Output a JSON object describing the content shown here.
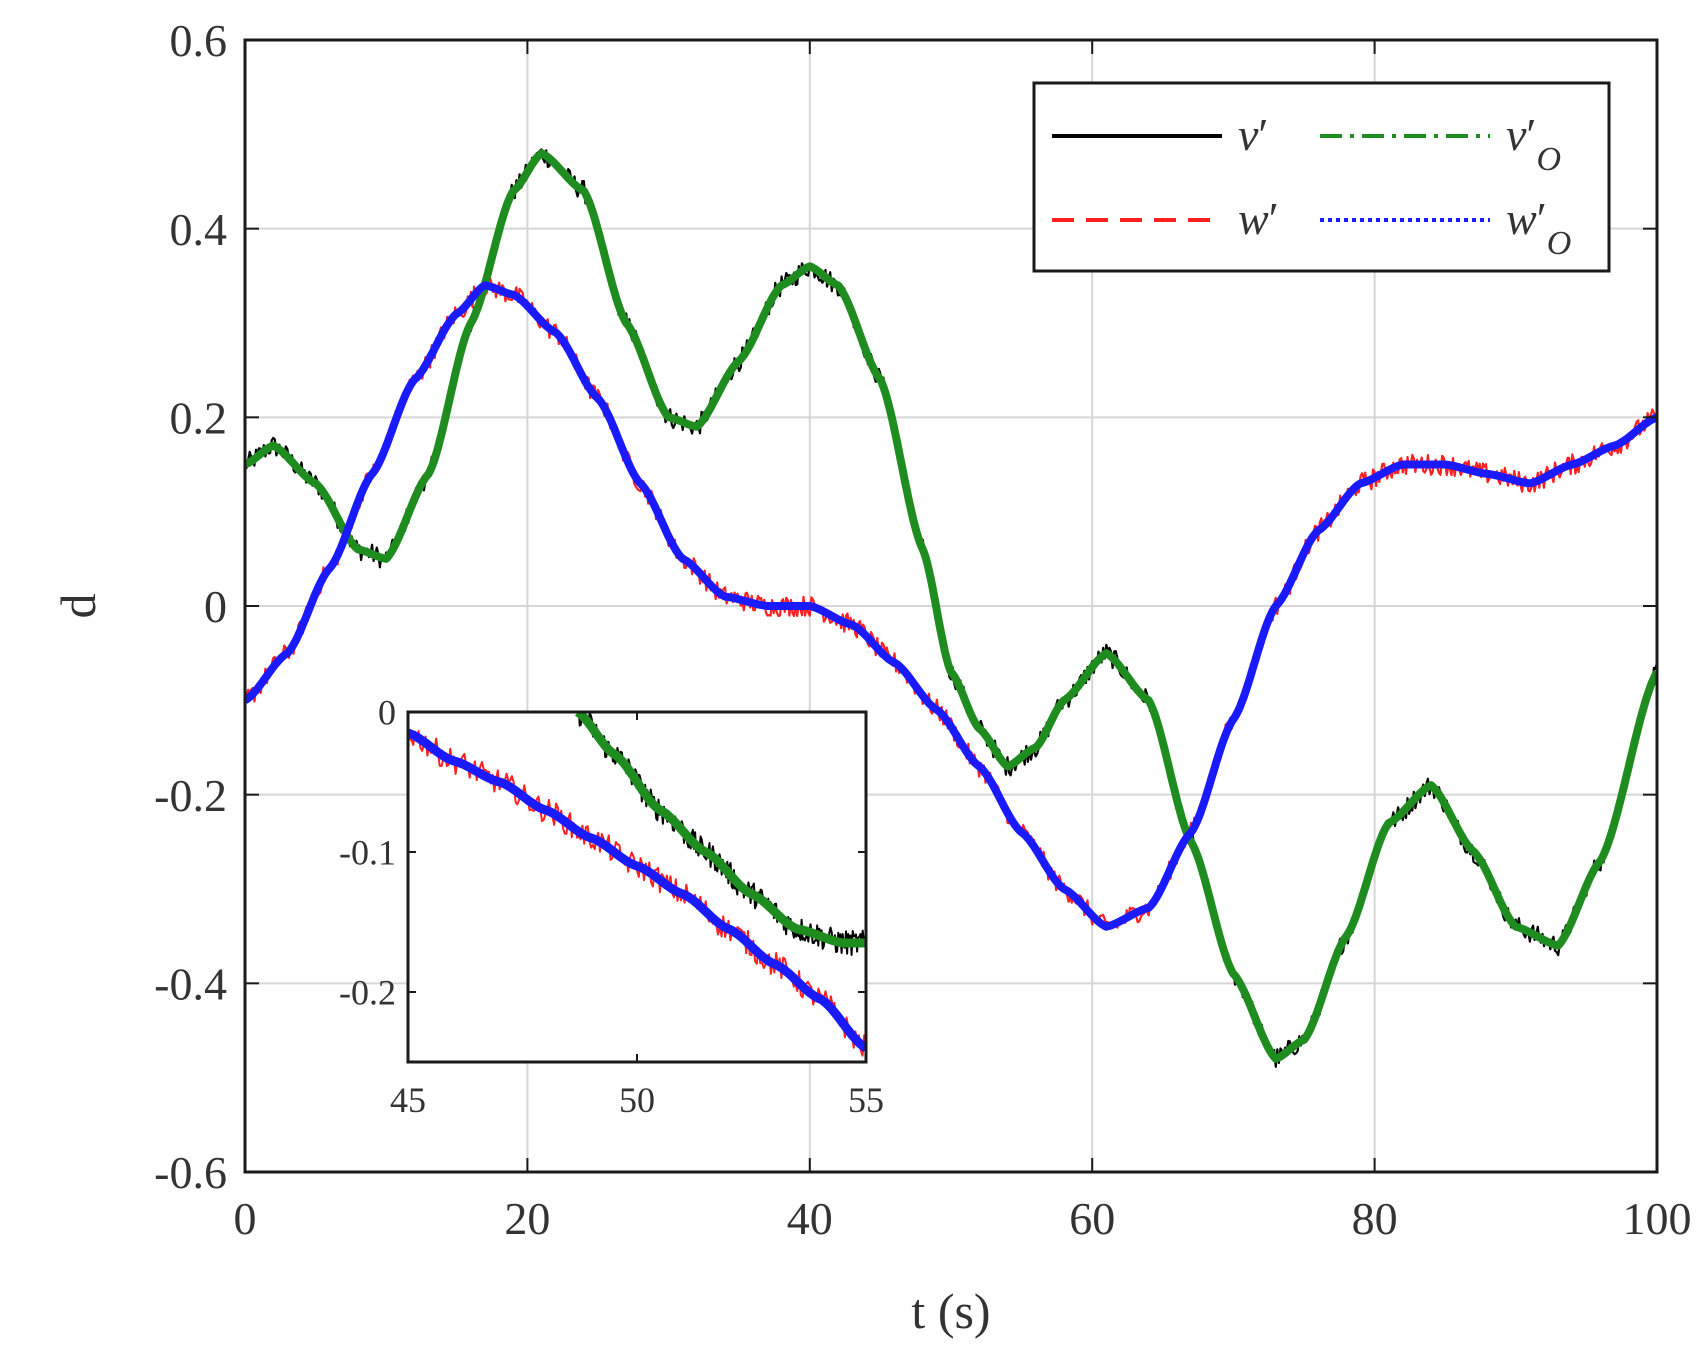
{
  "chart_data": [
    {
      "type": "line",
      "title": "",
      "xlabel": "t (s)",
      "ylabel": "d",
      "xlim": [
        0,
        100
      ],
      "ylim": [
        -0.6,
        0.6
      ],
      "xticks": [
        "0",
        "20",
        "40",
        "60",
        "80",
        "100"
      ],
      "yticks": [
        "0.6",
        "0.4",
        "0.2",
        "0",
        "-0.2",
        "-0.4",
        "-0.6"
      ],
      "grid": true,
      "legend_position": "top-right",
      "legend_columns": 2,
      "series": [
        {
          "name": "v′",
          "legend_symbol": "v",
          "legend_subscript": "",
          "color": "#000000",
          "style": "solid",
          "noisy": true,
          "x": [
            0,
            2,
            5,
            8,
            10,
            13,
            16,
            19,
            21,
            24,
            27,
            30,
            32,
            35,
            38,
            40,
            42,
            45,
            48,
            50,
            52,
            54,
            56,
            58,
            61,
            64,
            67,
            70,
            73,
            75,
            78,
            81,
            84,
            87,
            90,
            93,
            96,
            100
          ],
          "y": [
            0.15,
            0.17,
            0.13,
            0.06,
            0.05,
            0.14,
            0.3,
            0.44,
            0.48,
            0.44,
            0.3,
            0.2,
            0.19,
            0.26,
            0.34,
            0.36,
            0.34,
            0.24,
            0.06,
            -0.07,
            -0.13,
            -0.17,
            -0.15,
            -0.1,
            -0.05,
            -0.1,
            -0.25,
            -0.39,
            -0.48,
            -0.46,
            -0.35,
            -0.23,
            -0.19,
            -0.26,
            -0.34,
            -0.36,
            -0.27,
            -0.07
          ]
        },
        {
          "name": "w′",
          "legend_symbol": "w",
          "legend_subscript": "",
          "color": "#ff2020",
          "style": "dashed",
          "noisy": true,
          "x": [
            0,
            3,
            6,
            9,
            12,
            15,
            17,
            19,
            22,
            25,
            28,
            31,
            34,
            37,
            40,
            43,
            46,
            49,
            52,
            55,
            58,
            61,
            64,
            67,
            70,
            73,
            76,
            79,
            82,
            85,
            88,
            91,
            94,
            97,
            100
          ],
          "y": [
            -0.1,
            -0.05,
            0.04,
            0.14,
            0.24,
            0.31,
            0.34,
            0.33,
            0.29,
            0.22,
            0.13,
            0.05,
            0.01,
            0.0,
            0.0,
            -0.02,
            -0.06,
            -0.11,
            -0.17,
            -0.24,
            -0.3,
            -0.34,
            -0.32,
            -0.24,
            -0.12,
            0.0,
            0.08,
            0.13,
            0.15,
            0.15,
            0.14,
            0.13,
            0.15,
            0.17,
            0.2
          ]
        },
        {
          "name": "v′O",
          "legend_symbol": "v",
          "legend_subscript": "O",
          "color": "#1e8c1e",
          "style": "dashdot",
          "noisy": false,
          "x": [
            0,
            2,
            5,
            8,
            10,
            13,
            16,
            19,
            21,
            24,
            27,
            30,
            32,
            35,
            38,
            40,
            42,
            45,
            48,
            50,
            52,
            54,
            56,
            58,
            61,
            64,
            67,
            70,
            73,
            75,
            78,
            81,
            84,
            87,
            90,
            93,
            96,
            100
          ],
          "y": [
            0.15,
            0.17,
            0.13,
            0.06,
            0.05,
            0.14,
            0.3,
            0.44,
            0.48,
            0.44,
            0.3,
            0.2,
            0.19,
            0.26,
            0.34,
            0.36,
            0.34,
            0.24,
            0.06,
            -0.07,
            -0.13,
            -0.17,
            -0.15,
            -0.1,
            -0.05,
            -0.1,
            -0.25,
            -0.39,
            -0.48,
            -0.46,
            -0.35,
            -0.23,
            -0.19,
            -0.26,
            -0.34,
            -0.36,
            -0.27,
            -0.07
          ]
        },
        {
          "name": "w′O",
          "legend_symbol": "w",
          "legend_subscript": "O",
          "color": "#1a1aff",
          "style": "dotted",
          "noisy": false,
          "x": [
            0,
            3,
            6,
            9,
            12,
            15,
            17,
            19,
            22,
            25,
            28,
            31,
            34,
            37,
            40,
            43,
            46,
            49,
            52,
            55,
            58,
            61,
            64,
            67,
            70,
            73,
            76,
            79,
            82,
            85,
            88,
            91,
            94,
            97,
            100
          ],
          "y": [
            -0.1,
            -0.05,
            0.04,
            0.14,
            0.24,
            0.31,
            0.34,
            0.33,
            0.29,
            0.22,
            0.13,
            0.05,
            0.01,
            0.0,
            0.0,
            -0.02,
            -0.06,
            -0.11,
            -0.17,
            -0.24,
            -0.3,
            -0.34,
            -0.32,
            -0.24,
            -0.12,
            0.0,
            0.08,
            0.13,
            0.15,
            0.15,
            0.14,
            0.13,
            0.15,
            0.17,
            0.2
          ]
        }
      ]
    },
    {
      "type": "line",
      "title": "",
      "xlabel": "",
      "ylabel": "",
      "xlim": [
        45,
        55
      ],
      "ylim": [
        -0.25,
        0
      ],
      "xticks": [
        "45",
        "50",
        "55"
      ],
      "yticks": [
        "0",
        "-0.1",
        "-0.2"
      ],
      "grid": false,
      "series": [
        {
          "name": "v′",
          "color": "#000000",
          "noisy": true,
          "x": [
            48.7,
            49.5,
            50.5,
            51.5,
            52.5,
            53.5,
            54.5,
            55
          ],
          "y": [
            0.0,
            -0.03,
            -0.07,
            -0.1,
            -0.13,
            -0.155,
            -0.165,
            -0.165
          ]
        },
        {
          "name": "w′",
          "color": "#ff2020",
          "noisy": true,
          "x": [
            45,
            46,
            47,
            48,
            49,
            50,
            51,
            52,
            53,
            54,
            55
          ],
          "y": [
            -0.015,
            -0.035,
            -0.05,
            -0.07,
            -0.09,
            -0.11,
            -0.13,
            -0.155,
            -0.18,
            -0.205,
            -0.24
          ]
        },
        {
          "name": "v′O",
          "color": "#1e8c1e",
          "noisy": false,
          "x": [
            48.7,
            49.5,
            50.5,
            51.5,
            52.5,
            53.5,
            54.5,
            55
          ],
          "y": [
            0.0,
            -0.03,
            -0.07,
            -0.1,
            -0.13,
            -0.155,
            -0.165,
            -0.165
          ]
        },
        {
          "name": "w′O",
          "color": "#1a1aff",
          "noisy": false,
          "x": [
            45,
            46,
            47,
            48,
            49,
            50,
            51,
            52,
            53,
            54,
            55
          ],
          "y": [
            -0.015,
            -0.035,
            -0.05,
            -0.07,
            -0.09,
            -0.11,
            -0.13,
            -0.155,
            -0.18,
            -0.205,
            -0.24
          ]
        }
      ]
    }
  ]
}
